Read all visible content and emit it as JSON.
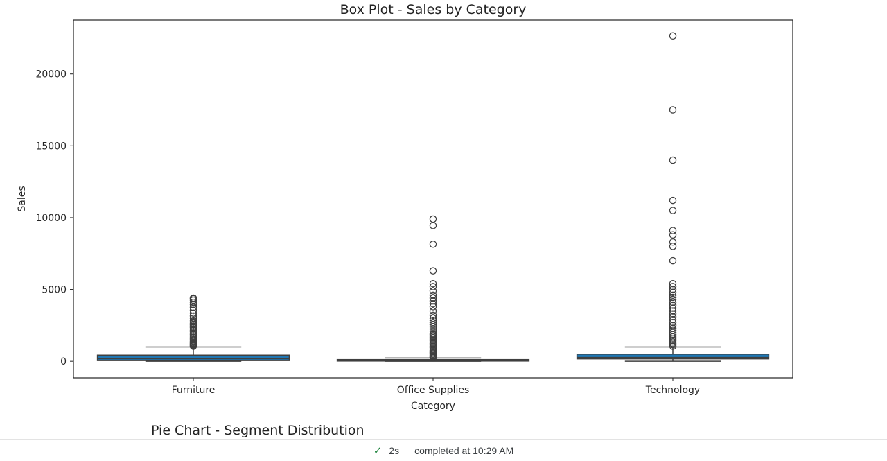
{
  "chart_data": {
    "type": "box",
    "title": "Box Plot - Sales by Category",
    "xlabel": "Category",
    "ylabel": "Sales",
    "ylim": [
      -1150,
      23750
    ],
    "yticks": [
      0,
      5000,
      10000,
      15000,
      20000
    ],
    "grid": false,
    "color": "#1f77b4",
    "categories": [
      "Furniture",
      "Office Supplies",
      "Technology"
    ],
    "boxes": [
      {
        "category": "Furniture",
        "q1": 50,
        "median": 180,
        "q3": 430,
        "whisker_low": 2,
        "whisker_high": 1000,
        "outliers": [
          1050,
          1100,
          1150,
          1200,
          1260,
          1320,
          1400,
          1480,
          1560,
          1650,
          1750,
          1850,
          1950,
          2050,
          2150,
          2250,
          2350,
          2450,
          2550,
          2650,
          2750,
          2850,
          3000,
          3150,
          3350,
          3550,
          3750,
          3950,
          4100,
          4250,
          4350,
          4400
        ]
      },
      {
        "category": "Office Supplies",
        "q1": 17,
        "median": 47,
        "q3": 120,
        "whisker_low": 0.5,
        "whisker_high": 230,
        "outliers": [
          250,
          300,
          360,
          420,
          500,
          580,
          660,
          750,
          850,
          950,
          1050,
          1150,
          1250,
          1350,
          1450,
          1550,
          1650,
          1750,
          1850,
          1950,
          2100,
          2250,
          2400,
          2550,
          2700,
          2850,
          3000,
          3200,
          3500,
          3800,
          4000,
          4200,
          4400,
          4600,
          4900,
          5200,
          5400,
          6300,
          8150,
          9450,
          9900
        ]
      },
      {
        "category": "Technology",
        "q1": 170,
        "median": 270,
        "q3": 500,
        "whisker_low": 1,
        "whisker_high": 1000,
        "outliers": [
          1050,
          1150,
          1250,
          1350,
          1450,
          1550,
          1700,
          1850,
          2000,
          2150,
          2300,
          2500,
          2700,
          2900,
          3100,
          3300,
          3500,
          3700,
          3900,
          4100,
          4300,
          4450,
          4600,
          4800,
          5000,
          5200,
          5400,
          7000,
          8000,
          8300,
          8800,
          9100,
          10500,
          11200,
          14000,
          17500,
          22650
        ]
      }
    ]
  },
  "next_chart_title": "Pie Chart - Segment Distribution",
  "status": {
    "check_icon": "check-icon",
    "duration": "2s",
    "message": "completed at 10:29 AM"
  }
}
